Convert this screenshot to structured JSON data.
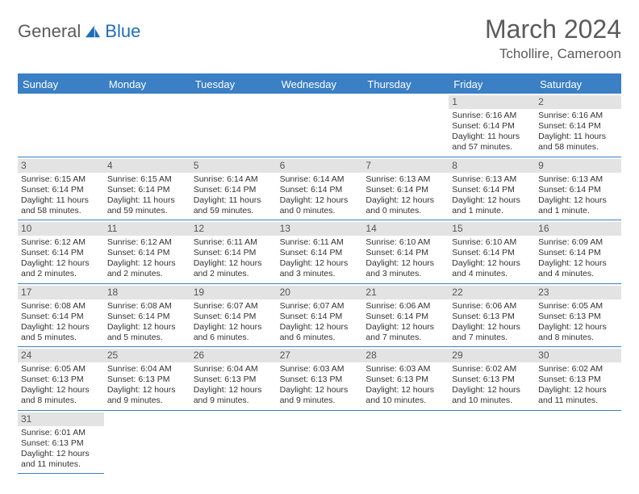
{
  "logo": {
    "text1": "General",
    "text2": "Blue"
  },
  "title": "March 2024",
  "location": "Tchollire, Cameroon",
  "colors": {
    "header_bg": "#3b7fc4",
    "header_text": "#ffffff",
    "daynum_bg": "#e3e3e3",
    "text": "#5b5b5b",
    "border": "#3b7fc4"
  },
  "day_headers": [
    "Sunday",
    "Monday",
    "Tuesday",
    "Wednesday",
    "Thursday",
    "Friday",
    "Saturday"
  ],
  "first_weekday": 5,
  "days": [
    {
      "n": 1,
      "sr": "6:16 AM",
      "ss": "6:14 PM",
      "dl": "11 hours and 57 minutes."
    },
    {
      "n": 2,
      "sr": "6:16 AM",
      "ss": "6:14 PM",
      "dl": "11 hours and 58 minutes."
    },
    {
      "n": 3,
      "sr": "6:15 AM",
      "ss": "6:14 PM",
      "dl": "11 hours and 58 minutes."
    },
    {
      "n": 4,
      "sr": "6:15 AM",
      "ss": "6:14 PM",
      "dl": "11 hours and 59 minutes."
    },
    {
      "n": 5,
      "sr": "6:14 AM",
      "ss": "6:14 PM",
      "dl": "11 hours and 59 minutes."
    },
    {
      "n": 6,
      "sr": "6:14 AM",
      "ss": "6:14 PM",
      "dl": "12 hours and 0 minutes."
    },
    {
      "n": 7,
      "sr": "6:13 AM",
      "ss": "6:14 PM",
      "dl": "12 hours and 0 minutes."
    },
    {
      "n": 8,
      "sr": "6:13 AM",
      "ss": "6:14 PM",
      "dl": "12 hours and 1 minute."
    },
    {
      "n": 9,
      "sr": "6:13 AM",
      "ss": "6:14 PM",
      "dl": "12 hours and 1 minute."
    },
    {
      "n": 10,
      "sr": "6:12 AM",
      "ss": "6:14 PM",
      "dl": "12 hours and 2 minutes."
    },
    {
      "n": 11,
      "sr": "6:12 AM",
      "ss": "6:14 PM",
      "dl": "12 hours and 2 minutes."
    },
    {
      "n": 12,
      "sr": "6:11 AM",
      "ss": "6:14 PM",
      "dl": "12 hours and 2 minutes."
    },
    {
      "n": 13,
      "sr": "6:11 AM",
      "ss": "6:14 PM",
      "dl": "12 hours and 3 minutes."
    },
    {
      "n": 14,
      "sr": "6:10 AM",
      "ss": "6:14 PM",
      "dl": "12 hours and 3 minutes."
    },
    {
      "n": 15,
      "sr": "6:10 AM",
      "ss": "6:14 PM",
      "dl": "12 hours and 4 minutes."
    },
    {
      "n": 16,
      "sr": "6:09 AM",
      "ss": "6:14 PM",
      "dl": "12 hours and 4 minutes."
    },
    {
      "n": 17,
      "sr": "6:08 AM",
      "ss": "6:14 PM",
      "dl": "12 hours and 5 minutes."
    },
    {
      "n": 18,
      "sr": "6:08 AM",
      "ss": "6:14 PM",
      "dl": "12 hours and 5 minutes."
    },
    {
      "n": 19,
      "sr": "6:07 AM",
      "ss": "6:14 PM",
      "dl": "12 hours and 6 minutes."
    },
    {
      "n": 20,
      "sr": "6:07 AM",
      "ss": "6:14 PM",
      "dl": "12 hours and 6 minutes."
    },
    {
      "n": 21,
      "sr": "6:06 AM",
      "ss": "6:14 PM",
      "dl": "12 hours and 7 minutes."
    },
    {
      "n": 22,
      "sr": "6:06 AM",
      "ss": "6:13 PM",
      "dl": "12 hours and 7 minutes."
    },
    {
      "n": 23,
      "sr": "6:05 AM",
      "ss": "6:13 PM",
      "dl": "12 hours and 8 minutes."
    },
    {
      "n": 24,
      "sr": "6:05 AM",
      "ss": "6:13 PM",
      "dl": "12 hours and 8 minutes."
    },
    {
      "n": 25,
      "sr": "6:04 AM",
      "ss": "6:13 PM",
      "dl": "12 hours and 9 minutes."
    },
    {
      "n": 26,
      "sr": "6:04 AM",
      "ss": "6:13 PM",
      "dl": "12 hours and 9 minutes."
    },
    {
      "n": 27,
      "sr": "6:03 AM",
      "ss": "6:13 PM",
      "dl": "12 hours and 9 minutes."
    },
    {
      "n": 28,
      "sr": "6:03 AM",
      "ss": "6:13 PM",
      "dl": "12 hours and 10 minutes."
    },
    {
      "n": 29,
      "sr": "6:02 AM",
      "ss": "6:13 PM",
      "dl": "12 hours and 10 minutes."
    },
    {
      "n": 30,
      "sr": "6:02 AM",
      "ss": "6:13 PM",
      "dl": "12 hours and 11 minutes."
    },
    {
      "n": 31,
      "sr": "6:01 AM",
      "ss": "6:13 PM",
      "dl": "12 hours and 11 minutes."
    }
  ],
  "labels": {
    "sunrise": "Sunrise:",
    "sunset": "Sunset:",
    "daylight": "Daylight:"
  }
}
